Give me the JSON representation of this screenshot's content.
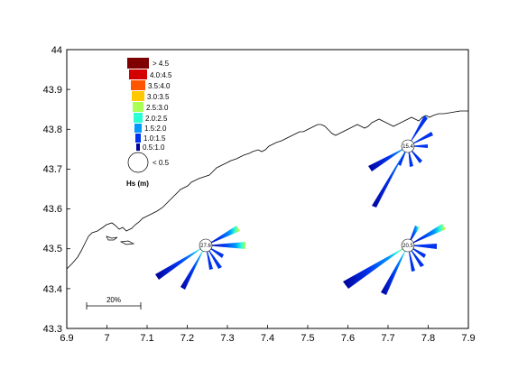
{
  "map": {
    "x_ticks": [
      "6.9",
      "7",
      "7.1",
      "7.2",
      "7.3",
      "7.4",
      "7.5",
      "7.6",
      "7.7",
      "7.8",
      "7.9"
    ],
    "y_ticks": [
      "44",
      "43.9",
      "43.8",
      "43.7",
      "43.6",
      "43.5",
      "43.4",
      "43.3"
    ],
    "xlim": [
      6.9,
      7.9
    ],
    "ylim": [
      43.3,
      44.0
    ],
    "coast_color": "#000000"
  },
  "legend": {
    "title": "Hs (m)",
    "classes": [
      {
        "label": "> 4.5",
        "color": "#7f0000"
      },
      {
        "label": "4.0:4.5",
        "color": "#d40000"
      },
      {
        "label": "3.5:4.0",
        "color": "#ff5500"
      },
      {
        "label": "3.0:3.5",
        "color": "#ffc800"
      },
      {
        "label": "2.5:3.0",
        "color": "#aaff55"
      },
      {
        "label": "2.0:2.5",
        "color": "#2bffd4"
      },
      {
        "label": "1.5:2.0",
        "color": "#0099ff"
      },
      {
        "label": "1.0:1.5",
        "color": "#0033ee"
      },
      {
        "label": "0.5:1.0",
        "color": "#000099"
      }
    ],
    "calm_label": "< 0.5"
  },
  "scale_bar": {
    "label": "20%"
  },
  "roses": [
    {
      "calm_label": "15.4",
      "lon": 7.75,
      "lat": 43.75
    },
    {
      "calm_label": "27.6",
      "lon": 7.25,
      "lat": 43.5
    },
    {
      "calm_label": "20.5",
      "lon": 7.75,
      "lat": 43.5
    }
  ]
}
